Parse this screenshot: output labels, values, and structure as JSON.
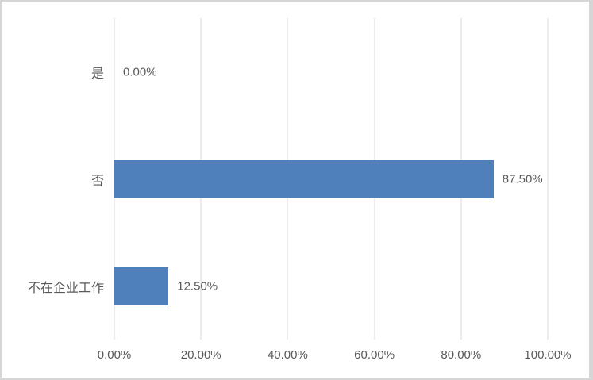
{
  "chart_data": {
    "type": "bar",
    "orientation": "horizontal",
    "title": "",
    "categories": [
      "是",
      "否",
      "不在企业工作"
    ],
    "values": [
      0.0,
      87.5,
      12.5
    ],
    "value_labels": [
      "0.00%",
      "87.50%",
      "12.50%"
    ],
    "x_tick_labels": [
      "0.00%",
      "20.00%",
      "40.00%",
      "60.00%",
      "80.00%",
      "100.00%"
    ],
    "x_tick_values": [
      0,
      20,
      40,
      60,
      80,
      100
    ],
    "xlim": [
      0,
      100
    ],
    "grid": true,
    "legend": false,
    "bar_color": "#4f80bc",
    "gridline_color": "#d9d9d9",
    "text_color": "#595959",
    "background_color": "#ffffff",
    "border_color": "#d6d6d6"
  }
}
